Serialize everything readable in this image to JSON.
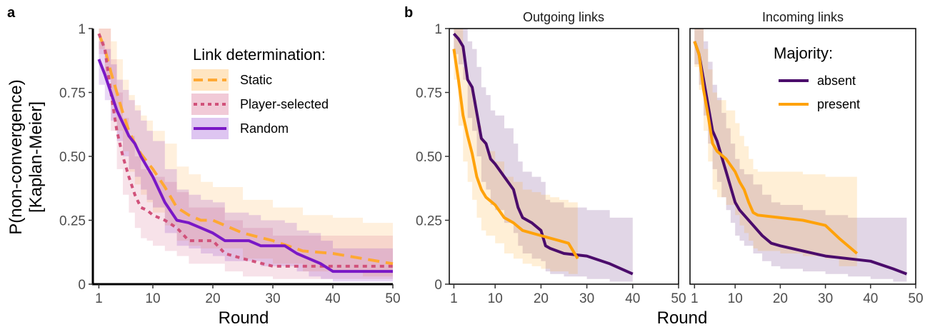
{
  "panels": {
    "a": "a",
    "b": "b"
  },
  "axis_titles": {
    "y_line1": "P(non-convergence)",
    "y_line2": "[Kaplan-Meier]",
    "x_a": "Round",
    "x_b": "Round"
  },
  "legend_a": {
    "title": "Link determination:",
    "items": [
      {
        "label": "Static",
        "color": "#FFA833",
        "dash": "dashed"
      },
      {
        "label": "Player-selected",
        "color": "#D1517A",
        "dash": "dotted"
      },
      {
        "label": "Random",
        "color": "#7A18C6",
        "dash": "solid"
      }
    ]
  },
  "legend_b": {
    "title": "Majority:",
    "items": [
      {
        "label": "absent",
        "color": "#4B0C6B"
      },
      {
        "label": "present",
        "color": "#FFA20A"
      }
    ]
  },
  "chart_data": [
    {
      "type": "line",
      "panel": "a",
      "xlabel": "Round",
      "ylabel": "P(non-convergence) [Kaplan-Meier]",
      "xlim": [
        0,
        50
      ],
      "ylim": [
        0,
        1
      ],
      "x_ticks": [
        "1",
        "10",
        "20",
        "30",
        "40",
        "50"
      ],
      "x_tick_values": [
        1,
        10,
        20,
        30,
        40,
        50
      ],
      "y_ticks": [
        "0",
        "0.25",
        "0.50",
        "0.75",
        "1"
      ],
      "y_tick_values": [
        0,
        0.25,
        0.5,
        0.75,
        1
      ],
      "legend": "Link determination:",
      "series": [
        {
          "name": "Static",
          "color": "#FFA833",
          "style": "dashed",
          "x": [
            1,
            2,
            3,
            4,
            5,
            6,
            7,
            8,
            9,
            10,
            12,
            14,
            16,
            18,
            20,
            25,
            30,
            35,
            40,
            45,
            50
          ],
          "y": [
            0.98,
            0.92,
            0.83,
            0.75,
            0.67,
            0.6,
            0.55,
            0.51,
            0.48,
            0.45,
            0.38,
            0.3,
            0.27,
            0.25,
            0.25,
            0.2,
            0.17,
            0.13,
            0.12,
            0.1,
            0.08
          ],
          "upper": [
            1.0,
            1.0,
            0.95,
            0.88,
            0.8,
            0.74,
            0.7,
            0.66,
            0.64,
            0.6,
            0.55,
            0.46,
            0.43,
            0.4,
            0.38,
            0.33,
            0.3,
            0.27,
            0.26,
            0.24,
            0.23
          ],
          "lower": [
            0.92,
            0.8,
            0.7,
            0.6,
            0.52,
            0.44,
            0.39,
            0.35,
            0.32,
            0.28,
            0.23,
            0.17,
            0.15,
            0.14,
            0.14,
            0.1,
            0.08,
            0.05,
            0.05,
            0.03,
            0.02
          ]
        },
        {
          "name": "Player-selected",
          "color": "#D1517A",
          "style": "dotted",
          "x": [
            1,
            2,
            3,
            4,
            5,
            6,
            7,
            8,
            9,
            10,
            12,
            14,
            16,
            18,
            20,
            22,
            25,
            30,
            35,
            40,
            45,
            50
          ],
          "y": [
            0.98,
            0.92,
            0.75,
            0.6,
            0.5,
            0.42,
            0.35,
            0.3,
            0.29,
            0.27,
            0.25,
            0.22,
            0.17,
            0.17,
            0.17,
            0.12,
            0.1,
            0.07,
            0.07,
            0.07,
            0.07,
            0.07
          ],
          "upper": [
            1.0,
            1.0,
            0.88,
            0.75,
            0.65,
            0.58,
            0.5,
            0.45,
            0.44,
            0.42,
            0.4,
            0.36,
            0.3,
            0.3,
            0.3,
            0.25,
            0.22,
            0.19,
            0.19,
            0.19,
            0.19,
            0.19
          ],
          "lower": [
            0.9,
            0.8,
            0.6,
            0.45,
            0.35,
            0.28,
            0.22,
            0.18,
            0.17,
            0.15,
            0.13,
            0.11,
            0.08,
            0.08,
            0.08,
            0.05,
            0.03,
            0.02,
            0.02,
            0.02,
            0.02,
            0.02
          ]
        },
        {
          "name": "Random",
          "color": "#7A18C6",
          "style": "solid",
          "x": [
            1,
            2,
            3,
            4,
            5,
            6,
            7,
            8,
            9,
            10,
            12,
            14,
            16,
            18,
            20,
            22,
            26,
            28,
            32,
            34,
            36,
            38,
            40,
            45,
            50
          ],
          "y": [
            0.88,
            0.82,
            0.75,
            0.68,
            0.63,
            0.58,
            0.55,
            0.5,
            0.46,
            0.42,
            0.32,
            0.25,
            0.24,
            0.22,
            0.2,
            0.17,
            0.17,
            0.15,
            0.15,
            0.12,
            0.1,
            0.08,
            0.05,
            0.05,
            0.05
          ],
          "upper": [
            0.95,
            0.92,
            0.86,
            0.8,
            0.76,
            0.72,
            0.68,
            0.64,
            0.6,
            0.56,
            0.45,
            0.37,
            0.35,
            0.33,
            0.32,
            0.28,
            0.27,
            0.25,
            0.24,
            0.21,
            0.2,
            0.17,
            0.14,
            0.14,
            0.14
          ],
          "lower": [
            0.78,
            0.72,
            0.64,
            0.56,
            0.5,
            0.45,
            0.42,
            0.37,
            0.33,
            0.3,
            0.2,
            0.15,
            0.14,
            0.12,
            0.11,
            0.09,
            0.09,
            0.07,
            0.07,
            0.05,
            0.03,
            0.02,
            0.01,
            0.01,
            0.01
          ]
        }
      ]
    },
    {
      "type": "line",
      "panel": "b-outgoing",
      "title": "Outgoing links",
      "xlabel": "Round",
      "xlim": [
        0,
        50
      ],
      "ylim": [
        0,
        1
      ],
      "x_ticks": [
        "1",
        "10",
        "20",
        "30",
        "40",
        "50"
      ],
      "x_tick_values": [
        1,
        10,
        20,
        30,
        40,
        50
      ],
      "y_ticks": [
        "0",
        "0.25",
        "0.50",
        "0.75",
        "1"
      ],
      "y_tick_values": [
        0,
        0.25,
        0.5,
        0.75,
        1
      ],
      "series": [
        {
          "name": "absent",
          "color": "#4B0C6B",
          "x": [
            1,
            2,
            3,
            4,
            5,
            6,
            7,
            8,
            9,
            10,
            12,
            14,
            15,
            16,
            18,
            20,
            21,
            22,
            25,
            30,
            35,
            40
          ],
          "y": [
            0.98,
            0.96,
            0.93,
            0.8,
            0.77,
            0.67,
            0.57,
            0.55,
            0.49,
            0.47,
            0.42,
            0.37,
            0.3,
            0.26,
            0.24,
            0.21,
            0.15,
            0.14,
            0.12,
            0.11,
            0.08,
            0.04
          ],
          "upper": [
            1.0,
            1.0,
            1.0,
            0.95,
            0.92,
            0.85,
            0.77,
            0.74,
            0.68,
            0.66,
            0.61,
            0.55,
            0.48,
            0.44,
            0.42,
            0.4,
            0.33,
            0.32,
            0.3,
            0.29,
            0.26,
            0.24
          ],
          "lower": [
            0.9,
            0.86,
            0.8,
            0.65,
            0.6,
            0.5,
            0.4,
            0.37,
            0.31,
            0.29,
            0.24,
            0.2,
            0.15,
            0.12,
            0.1,
            0.09,
            0.05,
            0.04,
            0.03,
            0.02,
            0.01,
            0.0
          ]
        },
        {
          "name": "present",
          "color": "#FFA20A",
          "x": [
            1,
            2,
            3,
            4,
            5,
            6,
            7,
            8,
            10,
            12,
            14,
            16,
            18,
            20,
            22,
            24,
            26,
            28
          ],
          "y": [
            0.92,
            0.8,
            0.66,
            0.58,
            0.51,
            0.42,
            0.37,
            0.34,
            0.31,
            0.26,
            0.24,
            0.21,
            0.2,
            0.19,
            0.18,
            0.17,
            0.16,
            0.1
          ],
          "upper": [
            1.0,
            1.0,
            0.85,
            0.78,
            0.72,
            0.62,
            0.56,
            0.52,
            0.48,
            0.42,
            0.4,
            0.37,
            0.36,
            0.35,
            0.34,
            0.33,
            0.32,
            0.28
          ],
          "lower": [
            0.8,
            0.62,
            0.48,
            0.4,
            0.33,
            0.26,
            0.21,
            0.19,
            0.16,
            0.12,
            0.1,
            0.08,
            0.07,
            0.06,
            0.05,
            0.05,
            0.04,
            0.02
          ]
        }
      ]
    },
    {
      "type": "line",
      "panel": "b-incoming",
      "title": "Incoming links",
      "xlabel": "Round",
      "xlim": [
        0,
        50
      ],
      "ylim": [
        0,
        1
      ],
      "x_ticks": [
        "1",
        "10",
        "20",
        "30",
        "40",
        "50"
      ],
      "x_tick_values": [
        1,
        10,
        20,
        30,
        40,
        50
      ],
      "legend": "Majority:",
      "series": [
        {
          "name": "absent",
          "color": "#4B0C6B",
          "x": [
            1,
            2,
            3,
            4,
            5,
            6,
            7,
            8,
            9,
            10,
            11,
            12,
            14,
            16,
            18,
            20,
            25,
            30,
            35,
            40,
            45,
            48
          ],
          "y": [
            0.95,
            0.9,
            0.8,
            0.7,
            0.6,
            0.56,
            0.5,
            0.44,
            0.38,
            0.32,
            0.29,
            0.27,
            0.23,
            0.19,
            0.16,
            0.15,
            0.13,
            0.11,
            0.1,
            0.09,
            0.06,
            0.04
          ],
          "upper": [
            1.0,
            1.0,
            0.95,
            0.87,
            0.78,
            0.73,
            0.67,
            0.61,
            0.55,
            0.49,
            0.45,
            0.43,
            0.39,
            0.35,
            0.32,
            0.31,
            0.29,
            0.27,
            0.26,
            0.26,
            0.26,
            0.26
          ],
          "lower": [
            0.86,
            0.78,
            0.66,
            0.55,
            0.45,
            0.4,
            0.34,
            0.29,
            0.24,
            0.19,
            0.17,
            0.15,
            0.12,
            0.09,
            0.07,
            0.06,
            0.05,
            0.04,
            0.03,
            0.02,
            0.01,
            0.0
          ]
        },
        {
          "name": "present",
          "color": "#FFA20A",
          "x": [
            1,
            2,
            3,
            4,
            5,
            6,
            8,
            10,
            11,
            12,
            13,
            14,
            15,
            20,
            25,
            30,
            33,
            37
          ],
          "y": [
            0.95,
            0.9,
            0.76,
            0.66,
            0.55,
            0.52,
            0.49,
            0.44,
            0.4,
            0.37,
            0.32,
            0.28,
            0.27,
            0.26,
            0.25,
            0.23,
            0.18,
            0.12
          ],
          "upper": [
            1.0,
            1.0,
            0.92,
            0.84,
            0.75,
            0.72,
            0.68,
            0.63,
            0.58,
            0.54,
            0.49,
            0.45,
            0.44,
            0.44,
            0.43,
            0.42,
            0.42,
            0.42
          ],
          "lower": [
            0.85,
            0.76,
            0.6,
            0.48,
            0.37,
            0.34,
            0.31,
            0.27,
            0.23,
            0.2,
            0.17,
            0.14,
            0.13,
            0.12,
            0.11,
            0.1,
            0.07,
            0.03
          ]
        }
      ]
    }
  ]
}
